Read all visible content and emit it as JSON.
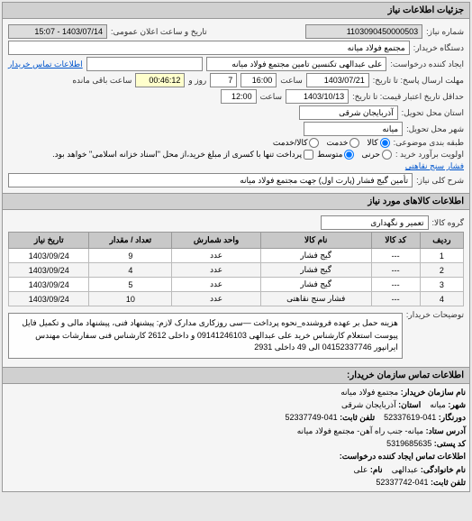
{
  "panel_title": "جزئیات اطلاعات نیاز",
  "request_number_label": "شماره نیاز:",
  "request_number": "1103090450000503",
  "public_datetime_label": "تاریخ و ساعت اعلان عمومی:",
  "public_datetime": "1403/07/14 - 15:07",
  "buyer_label": "دستگاه خریدار:",
  "buyer": "مجتمع فولاد میانه",
  "requester_label": "ایجاد کننده درخواست:",
  "requester": "علی عبدالهی تکنسین تامین مجتمع فولاد میانه",
  "buyer_contact_label": "اطلاعات تماس خریدار",
  "deadline_send_label": "مهلت ارسال پاسخ: تا تاریخ:",
  "deadline_date": "1403/07/21",
  "time_label": "ساعت",
  "deadline_time": "16:00",
  "days_field": "7",
  "day_and_label": "روز و",
  "remaining_time": "00:46:12",
  "remaining_label": "ساعت باقی مانده",
  "validity_label": "حداقل تاریخ اعتبار قیمت: تا تاریخ:",
  "validity_date": "1403/10/13",
  "validity_time": "12:00",
  "delivery_state_label": "استان محل تحویل:",
  "delivery_state": "آذربایجان شرقی",
  "delivery_city_label": "شهر محل تحویل:",
  "delivery_city": "میانه",
  "category_label": "طبقه بندی موضوعی:",
  "cat_goods": "کالا",
  "cat_service": "خدمت",
  "cat_goods_service": "کالا/خدمت",
  "purchase_priority_label": "اولویت برآورد خرید :",
  "pri_critical": "حرنی",
  "pri_medium": "متوسط",
  "purchase_note": "پرداخت تنها با کسری از مبلغ خرید،از محل \"اسناد خزانه اسلامی\" خواهد بود.",
  "gauge_label": "فشار سنج نقاهتی",
  "general_desc_label": "شرح کلی نیاز:",
  "general_desc": "تأمین گیج فشار (پارت اول) جهت مجتمع فولاد میانه",
  "goods_info_title": "اطلاعات کالاهای مورد نیاز",
  "goods_group_label": "گروه کالا:",
  "goods_group": "تعمیر و نگهداری",
  "table": {
    "columns": [
      "ردیف",
      "کد کالا",
      "نام کالا",
      "واحد شمارش",
      "تعداد / مقدار",
      "تاریخ نیاز"
    ],
    "rows": [
      [
        "1",
        "---",
        "گیج فشار",
        "عدد",
        "9",
        "1403/09/24"
      ],
      [
        "2",
        "---",
        "گیج فشار",
        "عدد",
        "4",
        "1403/09/24"
      ],
      [
        "3",
        "---",
        "گیج فشار",
        "عدد",
        "5",
        "1403/09/24"
      ],
      [
        "4",
        "---",
        "فشار سنج نقاهتی",
        "عدد",
        "10",
        "1403/09/24"
      ]
    ]
  },
  "buyer_desc_label": "توضیحات خریدار:",
  "buyer_desc": "هزینه حمل بر عهده فروشنده_نحوه پرداخت —سی روزکاری مدارک لازم: پیشنهاد فنی، پیشنهاد مالی و تکمیل فایل پیوست استعلام کارشناس خرید علی عبدالهی 09141246103 و داخلی 2612 کارشناس فنی سفارشات مهندس ایرانپور 04152337746 الی 49 داخلی 2931",
  "contact_title": "اطلاعات تماس سازمان خریدار:",
  "contact": {
    "org_name_label": "نام سازمان خریدار:",
    "org_name": "مجتمع فولاد میانه",
    "city_label": "شهر:",
    "city": "میانه",
    "province_label": "استان:",
    "province": "آذربایجان شرقی",
    "fax_label": "دورنگار:",
    "fax": "041-52337619",
    "phone_label": "تلفن ثابت:",
    "phone": "041-52337749",
    "address_label": "آدرس ستاد:",
    "address": "میانه- جنب راه آهن- مجتمع فولاد میانه",
    "postal_label": "کد پستی:",
    "postal": "5319685635",
    "creator_contact_label": "اطلاعات تماس ایجاد کننده درخواست:",
    "family_label": "نام خانوادگی:",
    "family": "عبدالهی",
    "name_label": "نام:",
    "name": "علی",
    "creator_phone_label": "تلفن ثابت:",
    "creator_phone": "041-52337742"
  }
}
